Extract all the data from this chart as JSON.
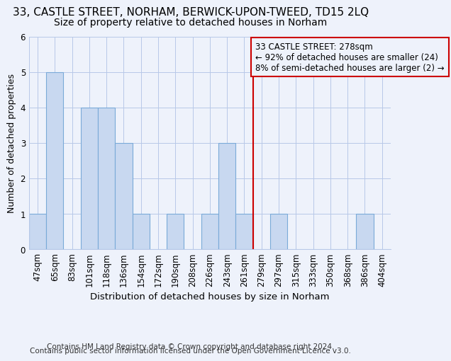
{
  "title1": "33, CASTLE STREET, NORHAM, BERWICK-UPON-TWEED, TD15 2LQ",
  "title2": "Size of property relative to detached houses in Norham",
  "xlabel": "Distribution of detached houses by size in Norham",
  "ylabel": "Number of detached properties",
  "footer1": "Contains HM Land Registry data © Crown copyright and database right 2024.",
  "footer2": "Contains public sector information licensed under the Open Government Licence v3.0.",
  "categories": [
    "47sqm",
    "65sqm",
    "83sqm",
    "101sqm",
    "118sqm",
    "136sqm",
    "154sqm",
    "172sqm",
    "190sqm",
    "208sqm",
    "226sqm",
    "243sqm",
    "261sqm",
    "279sqm",
    "297sqm",
    "315sqm",
    "333sqm",
    "350sqm",
    "368sqm",
    "386sqm",
    "404sqm"
  ],
  "values": [
    1,
    5,
    0,
    4,
    4,
    3,
    1,
    0,
    1,
    0,
    1,
    3,
    1,
    0,
    1,
    0,
    0,
    0,
    0,
    1,
    0
  ],
  "bar_color": "#c8d8f0",
  "bar_edge_color": "#7aaad8",
  "ref_line_color": "#cc0000",
  "ref_line_index": 13,
  "annotation_text": "33 CASTLE STREET: 278sqm\n← 92% of detached houses are smaller (24)\n8% of semi-detached houses are larger (2) →",
  "ylim": [
    0,
    6
  ],
  "yticks": [
    0,
    1,
    2,
    3,
    4,
    5,
    6
  ],
  "background_color": "#eef2fb",
  "title1_fontsize": 11,
  "title2_fontsize": 10,
  "xlabel_fontsize": 9.5,
  "ylabel_fontsize": 9,
  "tick_fontsize": 8.5,
  "annotation_fontsize": 8.5,
  "footer_fontsize": 7.5
}
